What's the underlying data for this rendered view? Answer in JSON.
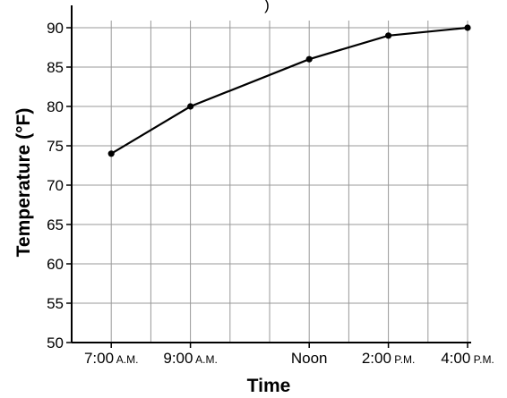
{
  "chart_data": {
    "type": "line",
    "title_fragment": ")",
    "xlabel": "Time",
    "ylabel": "Temperature (°F)",
    "ylim": [
      50,
      90
    ],
    "y_ticks": [
      "50",
      "55",
      "60",
      "65",
      "70",
      "75",
      "80",
      "85",
      "90"
    ],
    "x_ticks": [
      {
        "main": "7:00",
        "suffix": "A.M."
      },
      {
        "main": "9:00",
        "suffix": "A.M."
      },
      {
        "main": "Noon",
        "suffix": ""
      },
      {
        "main": "2:00",
        "suffix": "P.M."
      },
      {
        "main": "4:00",
        "suffix": "P.M."
      }
    ],
    "x_tick_hours": [
      7,
      9,
      12,
      14,
      16
    ],
    "xlim_hours": [
      6,
      16
    ],
    "grid": true,
    "series": [
      {
        "x_hours": [
          7,
          9,
          12,
          14,
          16
        ],
        "x": [
          "7:00 A.M.",
          "9:00 A.M.",
          "Noon",
          "2:00 P.M.",
          "4:00 P.M."
        ],
        "values": [
          74,
          80,
          86,
          89,
          90
        ]
      }
    ],
    "colors": {
      "line": "#000000",
      "grid": "#999999",
      "axis": "#000000"
    }
  }
}
